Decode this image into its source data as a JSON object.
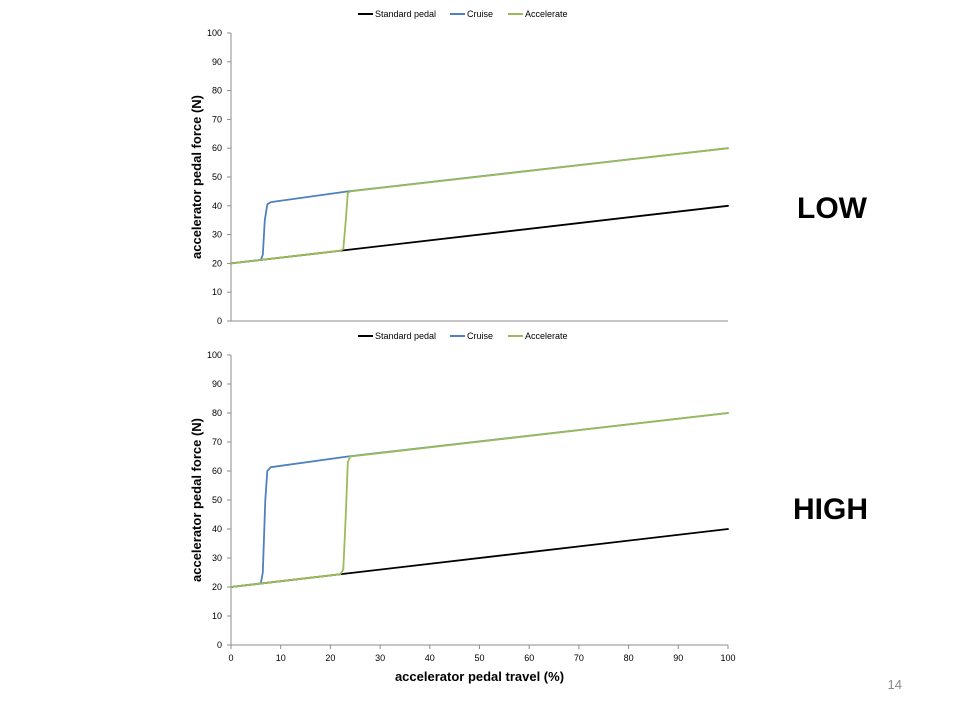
{
  "slide": {
    "page_number": "14",
    "label_low": "LOW",
    "label_high": "HIGH"
  },
  "colors": {
    "standard": "#000000",
    "cruise": "#4f81bd",
    "accelerate": "#9bbb59"
  },
  "chart_data": [
    {
      "type": "line",
      "name": "LOW",
      "xlabel": "",
      "ylabel": "accelerator pedal force (N)",
      "xlim": [
        0,
        100
      ],
      "ylim": [
        0,
        100
      ],
      "yticks": [
        0,
        10,
        20,
        30,
        40,
        50,
        60,
        70,
        80,
        90,
        100
      ],
      "xticks": [],
      "legend": {
        "placement": "top",
        "entries": [
          "Standard pedal",
          "Cruise",
          "Accelerate"
        ]
      },
      "series": [
        {
          "name": "Standard pedal",
          "color": "#000000",
          "points": [
            [
              0,
              20
            ],
            [
              100,
              40
            ]
          ]
        },
        {
          "name": "Cruise",
          "color": "#4f81bd",
          "points": [
            [
              0,
              20
            ],
            [
              6,
              21.2
            ],
            [
              6.4,
              23
            ],
            [
              6.8,
              35
            ],
            [
              7.3,
              40.5
            ],
            [
              8,
              41.3
            ],
            [
              23.5,
              45
            ],
            [
              100,
              60
            ]
          ]
        },
        {
          "name": "Accelerate",
          "color": "#9bbb59",
          "points": [
            [
              0,
              20
            ],
            [
              22,
              24.4
            ],
            [
              22.6,
              25
            ],
            [
              23.1,
              35
            ],
            [
              23.5,
              44.5
            ],
            [
              24,
              45
            ],
            [
              100,
              60
            ]
          ]
        }
      ]
    },
    {
      "type": "line",
      "name": "HIGH",
      "xlabel": "accelerator pedal travel (%)",
      "ylabel": "accelerator pedal force (N)",
      "xlim": [
        0,
        100
      ],
      "ylim": [
        0,
        100
      ],
      "yticks": [
        0,
        10,
        20,
        30,
        40,
        50,
        60,
        70,
        80,
        90,
        100
      ],
      "xticks": [
        0,
        10,
        20,
        30,
        40,
        50,
        60,
        70,
        80,
        90,
        100
      ],
      "legend": {
        "placement": "top",
        "entries": [
          "Standard pedal",
          "Cruise",
          "Accelerate"
        ]
      },
      "series": [
        {
          "name": "Standard pedal",
          "color": "#000000",
          "points": [
            [
              0,
              20
            ],
            [
              100,
              40
            ]
          ]
        },
        {
          "name": "Cruise",
          "color": "#4f81bd",
          "points": [
            [
              0,
              20
            ],
            [
              6,
              21.2
            ],
            [
              6.4,
              25
            ],
            [
              6.9,
              50
            ],
            [
              7.3,
              60
            ],
            [
              8,
              61.3
            ],
            [
              23.5,
              65
            ],
            [
              100,
              80
            ]
          ]
        },
        {
          "name": "Accelerate",
          "color": "#9bbb59",
          "points": [
            [
              0,
              20
            ],
            [
              22,
              24.4
            ],
            [
              22.6,
              26
            ],
            [
              23.1,
              45
            ],
            [
              23.5,
              63
            ],
            [
              24,
              65
            ],
            [
              100,
              80
            ]
          ]
        }
      ]
    }
  ]
}
